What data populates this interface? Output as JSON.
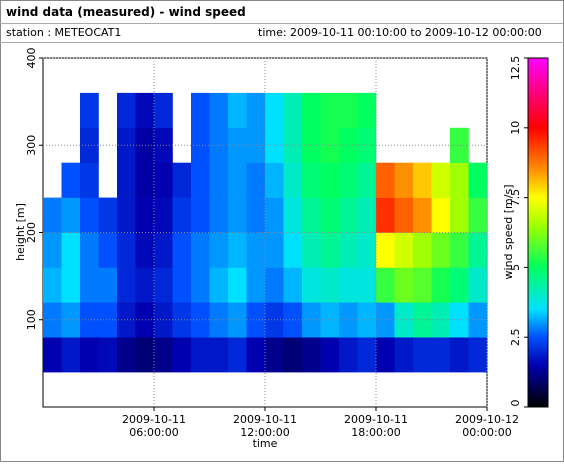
{
  "header": {
    "title": "wind data (measured) - wind speed",
    "station": "station : METEOCAT1",
    "time": "time: 2009-10-11 00:10:00 to 2009-10-12 00:00:00"
  },
  "chart_data": {
    "type": "heatmap",
    "xlabel": "time",
    "ylabel": "height [m]",
    "colorbar_label": "wind speed [m/s]",
    "xlim": [
      "2009-10-11 00:00:00",
      "2009-10-12 00:00:00"
    ],
    "xticks": [
      "2009-10-11 06:00:00",
      "2009-10-11 12:00:00",
      "2009-10-11 18:00:00",
      "2009-10-12 00:00:00"
    ],
    "ylim": [
      0,
      400
    ],
    "yticks": [
      100,
      200,
      300,
      400
    ],
    "grid": true,
    "clim": [
      0,
      12.5
    ],
    "cticks": [
      0,
      2.5,
      5,
      7.5,
      10,
      12.5
    ],
    "colorscale": [
      [
        0,
        "#000000"
      ],
      [
        1.5,
        "#0000b0"
      ],
      [
        2.5,
        "#0050ff"
      ],
      [
        3.5,
        "#00e0ff"
      ],
      [
        5,
        "#00ff60"
      ],
      [
        6.5,
        "#a0ff00"
      ],
      [
        7.5,
        "#ffff00"
      ],
      [
        8.5,
        "#ff9000"
      ],
      [
        10,
        "#ff0000"
      ],
      [
        11.3,
        "#ff0080"
      ],
      [
        12.5,
        "#ff00ff"
      ]
    ],
    "x": [
      "2009-10-11 00:00:00",
      "2009-10-11 01:00:00",
      "2009-10-11 02:00:00",
      "2009-10-11 03:00:00",
      "2009-10-11 04:00:00",
      "2009-10-11 05:00:00",
      "2009-10-11 06:00:00",
      "2009-10-11 07:00:00",
      "2009-10-11 08:00:00",
      "2009-10-11 09:00:00",
      "2009-10-11 10:00:00",
      "2009-10-11 11:00:00",
      "2009-10-11 12:00:00",
      "2009-10-11 13:00:00",
      "2009-10-11 14:00:00",
      "2009-10-11 15:00:00",
      "2009-10-11 16:00:00",
      "2009-10-11 17:00:00",
      "2009-10-11 18:00:00",
      "2009-10-11 19:00:00",
      "2009-10-11 20:00:00",
      "2009-10-11 21:00:00",
      "2009-10-11 22:00:00",
      "2009-10-11 23:00:00"
    ],
    "y": [
      40,
      80,
      120,
      160,
      200,
      240,
      280,
      320
    ],
    "z": [
      [
        1.5,
        1.8,
        1.5,
        1.6,
        1.2,
        1.0,
        1.2,
        1.5,
        1.8,
        1.8,
        2.0,
        1.5,
        1.2,
        1.0,
        1.2,
        1.5,
        1.8,
        2.0,
        1.5,
        1.8,
        2.0,
        2.0,
        1.8,
        2.0
      ],
      [
        2.8,
        3.0,
        2.5,
        2.5,
        1.8,
        1.5,
        1.8,
        2.2,
        2.5,
        2.8,
        3.0,
        2.5,
        2.2,
        2.5,
        3.0,
        3.2,
        3.0,
        3.2,
        3.0,
        4.0,
        4.5,
        4.2,
        3.5,
        3.0
      ],
      [
        3.2,
        3.5,
        2.8,
        2.8,
        2.0,
        1.8,
        2.0,
        2.5,
        2.8,
        3.2,
        3.5,
        3.0,
        2.8,
        3.2,
        3.8,
        4.0,
        3.8,
        3.8,
        5.5,
        6.0,
        5.8,
        5.2,
        4.8,
        4.0
      ],
      [
        3.0,
        3.5,
        2.8,
        2.5,
        2.0,
        1.6,
        1.8,
        2.5,
        2.8,
        3.0,
        3.2,
        3.0,
        3.0,
        3.5,
        4.2,
        4.5,
        4.2,
        4.0,
        7.5,
        7.0,
        6.5,
        6.0,
        5.5,
        4.5
      ],
      [
        2.8,
        3.0,
        2.5,
        2.2,
        1.8,
        1.5,
        1.6,
        2.2,
        2.5,
        2.8,
        3.0,
        2.8,
        3.0,
        3.8,
        4.5,
        4.8,
        4.5,
        4.2,
        9.5,
        9.0,
        8.5,
        7.5,
        6.5,
        5.5
      ],
      [
        null,
        2.5,
        2.2,
        null,
        1.8,
        1.4,
        1.5,
        2.0,
        2.5,
        2.8,
        3.0,
        2.8,
        3.2,
        4.0,
        4.8,
        5.0,
        4.8,
        4.5,
        9.0,
        8.5,
        8.0,
        7.0,
        6.5,
        5.0
      ],
      [
        null,
        null,
        2.0,
        null,
        1.8,
        1.4,
        1.6,
        null,
        2.5,
        2.8,
        3.0,
        3.0,
        3.5,
        4.2,
        5.0,
        5.2,
        5.0,
        4.8,
        null,
        null,
        null,
        null,
        5.5,
        null
      ],
      [
        null,
        null,
        2.2,
        null,
        2.0,
        1.6,
        2.0,
        null,
        2.5,
        2.8,
        3.2,
        3.0,
        3.5,
        4.2,
        5.0,
        5.2,
        5.2,
        5.0,
        null,
        null,
        null,
        null,
        null,
        null
      ]
    ]
  }
}
